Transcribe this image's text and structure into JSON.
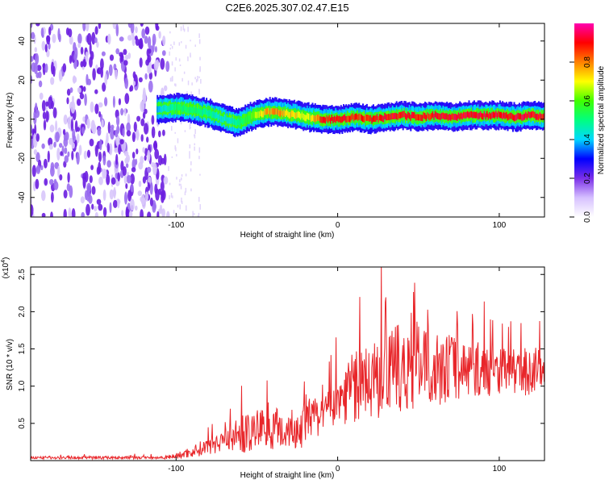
{
  "title": "C2E6.2025.307.02.47.E15",
  "chart_data": [
    {
      "type": "heatmap",
      "name": "spectrogram",
      "xlabel": "Height of straight line (km)",
      "ylabel": "Frequency (Hz)",
      "xlim": [
        -190,
        128
      ],
      "ylim": [
        -50,
        49
      ],
      "xticks": [
        -100,
        0,
        100
      ],
      "xtick_labels": [
        "-100",
        "0",
        "100"
      ],
      "yticks": [
        -40,
        -20,
        0,
        20,
        40
      ],
      "ytick_labels": [
        "-40",
        "-20",
        "0",
        "20",
        "40"
      ],
      "noise_region": {
        "x_from": -190,
        "x_to": -105,
        "amplitude": 0.05
      },
      "ridge": {
        "x": [
          -112,
          -100,
          -90,
          -80,
          -70,
          -62,
          -55,
          -48,
          -40,
          -33,
          -25,
          -18,
          -10,
          0,
          10,
          20,
          30,
          40,
          50,
          60,
          70,
          80,
          90,
          100,
          110,
          120,
          128
        ],
        "frequency": [
          5,
          6,
          5,
          3,
          0,
          -2,
          1,
          3,
          4,
          3,
          2,
          1,
          0,
          0,
          1,
          0,
          1,
          2,
          1,
          2,
          1,
          2,
          2,
          2,
          1,
          2,
          1
        ],
        "amplitude": [
          0.4,
          0.55,
          0.55,
          0.5,
          0.45,
          0.5,
          0.6,
          0.75,
          0.85,
          0.8,
          0.75,
          0.7,
          0.92,
          0.95,
          0.9,
          0.92,
          0.95,
          0.95,
          0.93,
          0.95,
          0.96,
          0.97,
          0.97,
          0.97,
          0.96,
          0.95,
          0.95
        ]
      },
      "colorbar": {
        "label": "Normalized spectral amplitude",
        "range": [
          0,
          1
        ],
        "ticks": [
          0.0,
          0.2,
          0.4,
          0.6,
          0.8
        ],
        "tick_labels": [
          "0.0",
          "0.2",
          "0.4",
          "0.6",
          "0.8"
        ],
        "colors": [
          "#ffffff",
          "#d6c0ff",
          "#7a2fe8",
          "#0000ff",
          "#00d8ff",
          "#00ff80",
          "#40ff00",
          "#ffff00",
          "#ff8000",
          "#ff0000",
          "#ff00b0"
        ]
      }
    },
    {
      "type": "line",
      "name": "snr",
      "xlabel": "Height of straight line (km)",
      "ylabel": "SNR (10 * v/v)",
      "multiplier": "(x10",
      "multiplier_exp": "4",
      "xlim": [
        -190,
        128
      ],
      "ylim": [
        0,
        2.6
      ],
      "xticks": [
        -100,
        0,
        100
      ],
      "xtick_labels": [
        "-100",
        "0",
        "100"
      ],
      "yticks": [
        0.5,
        1.0,
        1.5,
        2.0,
        2.5
      ],
      "ytick_labels": [
        "0.5",
        "1.0",
        "1.5",
        "2.0",
        "2.5"
      ],
      "color": "#e8262a",
      "series": [
        {
          "name": "SNR",
          "x": [
            -190,
            -170,
            -150,
            -130,
            -110,
            -100,
            -90,
            -80,
            -70,
            -60,
            -50,
            -45,
            -40,
            -35,
            -30,
            -25,
            -20,
            -15,
            -10,
            -5,
            0,
            5,
            10,
            15,
            20,
            25,
            30,
            35,
            40,
            45,
            50,
            55,
            60,
            65,
            70,
            75,
            80,
            85,
            90,
            95,
            100,
            105,
            110,
            115,
            120,
            125,
            128
          ],
          "y": [
            0.04,
            0.04,
            0.04,
            0.04,
            0.04,
            0.06,
            0.12,
            0.2,
            0.3,
            0.35,
            0.4,
            0.5,
            0.45,
            0.4,
            0.45,
            0.4,
            0.5,
            0.55,
            0.6,
            0.7,
            0.75,
            0.95,
            1.0,
            1.0,
            1.05,
            1.1,
            1.15,
            1.2,
            1.25,
            1.2,
            1.25,
            1.3,
            1.25,
            1.2,
            1.3,
            1.25,
            1.2,
            1.25,
            1.2,
            1.2,
            1.25,
            1.2,
            1.2,
            1.15,
            1.2,
            1.25,
            1.2
          ],
          "noise": [
            0.02,
            0.02,
            0.02,
            0.02,
            0.02,
            0.04,
            0.08,
            0.12,
            0.18,
            0.25,
            0.3,
            0.35,
            0.3,
            0.3,
            0.3,
            0.3,
            0.35,
            0.3,
            0.3,
            0.3,
            0.35,
            0.45,
            0.5,
            0.5,
            0.5,
            0.55,
            0.55,
            0.6,
            0.6,
            0.6,
            0.55,
            0.55,
            0.5,
            0.45,
            0.45,
            0.45,
            0.4,
            0.4,
            0.35,
            0.35,
            0.35,
            0.3,
            0.3,
            0.3,
            0.3,
            0.3,
            0.3
          ]
        }
      ]
    }
  ]
}
